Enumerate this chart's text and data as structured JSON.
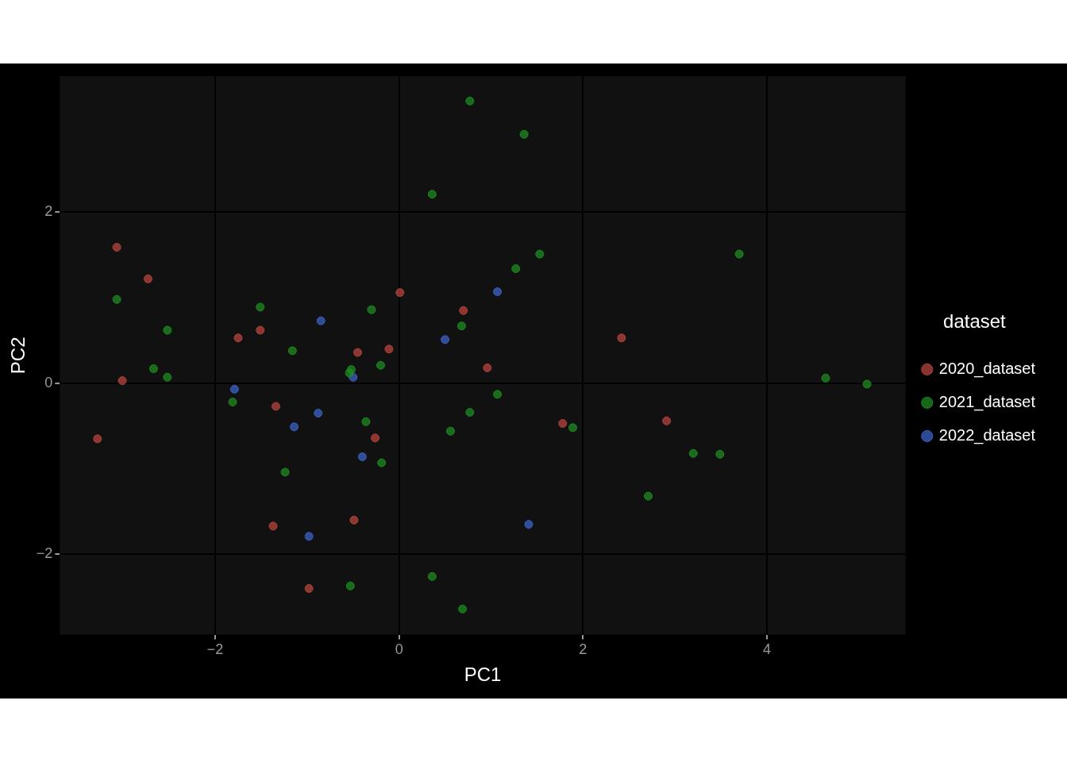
{
  "chart_data": {
    "type": "scatter",
    "xlabel": "PC1",
    "ylabel": "PC2",
    "legend_title": "dataset",
    "legend": "right",
    "grid": true,
    "marker": "circle",
    "xlim": [
      -3.69,
      5.51
    ],
    "xticks": [
      -2,
      0,
      2,
      4
    ],
    "ylim": [
      -2.94,
      3.59
    ],
    "yticks": [
      -2,
      0,
      2
    ],
    "series": [
      {
        "name": "2020_dataset",
        "color": "#b5443c",
        "x": [
          -3.07,
          -2.73,
          -3.01,
          -3.28,
          -1.75,
          -1.51,
          -1.34,
          -1.37,
          -0.98,
          -0.49,
          -0.45,
          -0.26,
          -0.11,
          0.01,
          0.7,
          0.96,
          1.78,
          2.42,
          2.91
        ],
        "values": [
          1.59,
          1.22,
          0.03,
          -0.65,
          0.53,
          0.62,
          -0.27,
          -1.67,
          -2.4,
          -1.6,
          0.36,
          -0.64,
          0.4,
          1.06,
          0.85,
          0.18,
          -0.47,
          0.53,
          -0.44
        ]
      },
      {
        "name": "2021_dataset",
        "color": "#1f8a22",
        "x": [
          0.77,
          1.36,
          0.36,
          1.27,
          1.53,
          3.7,
          -3.07,
          -2.52,
          -2.67,
          -2.52,
          -1.51,
          -1.16,
          -0.3,
          -0.52,
          -0.54,
          -0.2,
          0.68,
          -1.81,
          -0.36,
          -0.19,
          -1.24,
          0.56,
          0.77,
          1.07,
          1.89,
          -0.53,
          0.36,
          0.69,
          2.71,
          3.2,
          3.49,
          4.64,
          5.09
        ],
        "values": [
          3.3,
          2.91,
          2.21,
          1.34,
          1.51,
          1.51,
          0.98,
          0.62,
          0.17,
          0.07,
          0.89,
          0.38,
          0.86,
          0.16,
          0.12,
          0.21,
          0.67,
          -0.22,
          -0.45,
          -0.93,
          -1.04,
          -0.56,
          -0.34,
          -0.13,
          -0.52,
          -2.37,
          -2.26,
          -2.64,
          -1.32,
          -0.82,
          -0.83,
          0.06,
          -0.01
        ]
      },
      {
        "name": "2022_dataset",
        "color": "#3d62c4",
        "x": [
          1.07,
          0.5,
          -0.85,
          -1.79,
          -0.88,
          -1.14,
          -0.5,
          -0.4,
          -0.98,
          1.41
        ],
        "values": [
          1.07,
          0.51,
          0.73,
          -0.07,
          -0.35,
          -0.51,
          0.07,
          -0.86,
          -1.79,
          -1.65
        ]
      }
    ]
  }
}
